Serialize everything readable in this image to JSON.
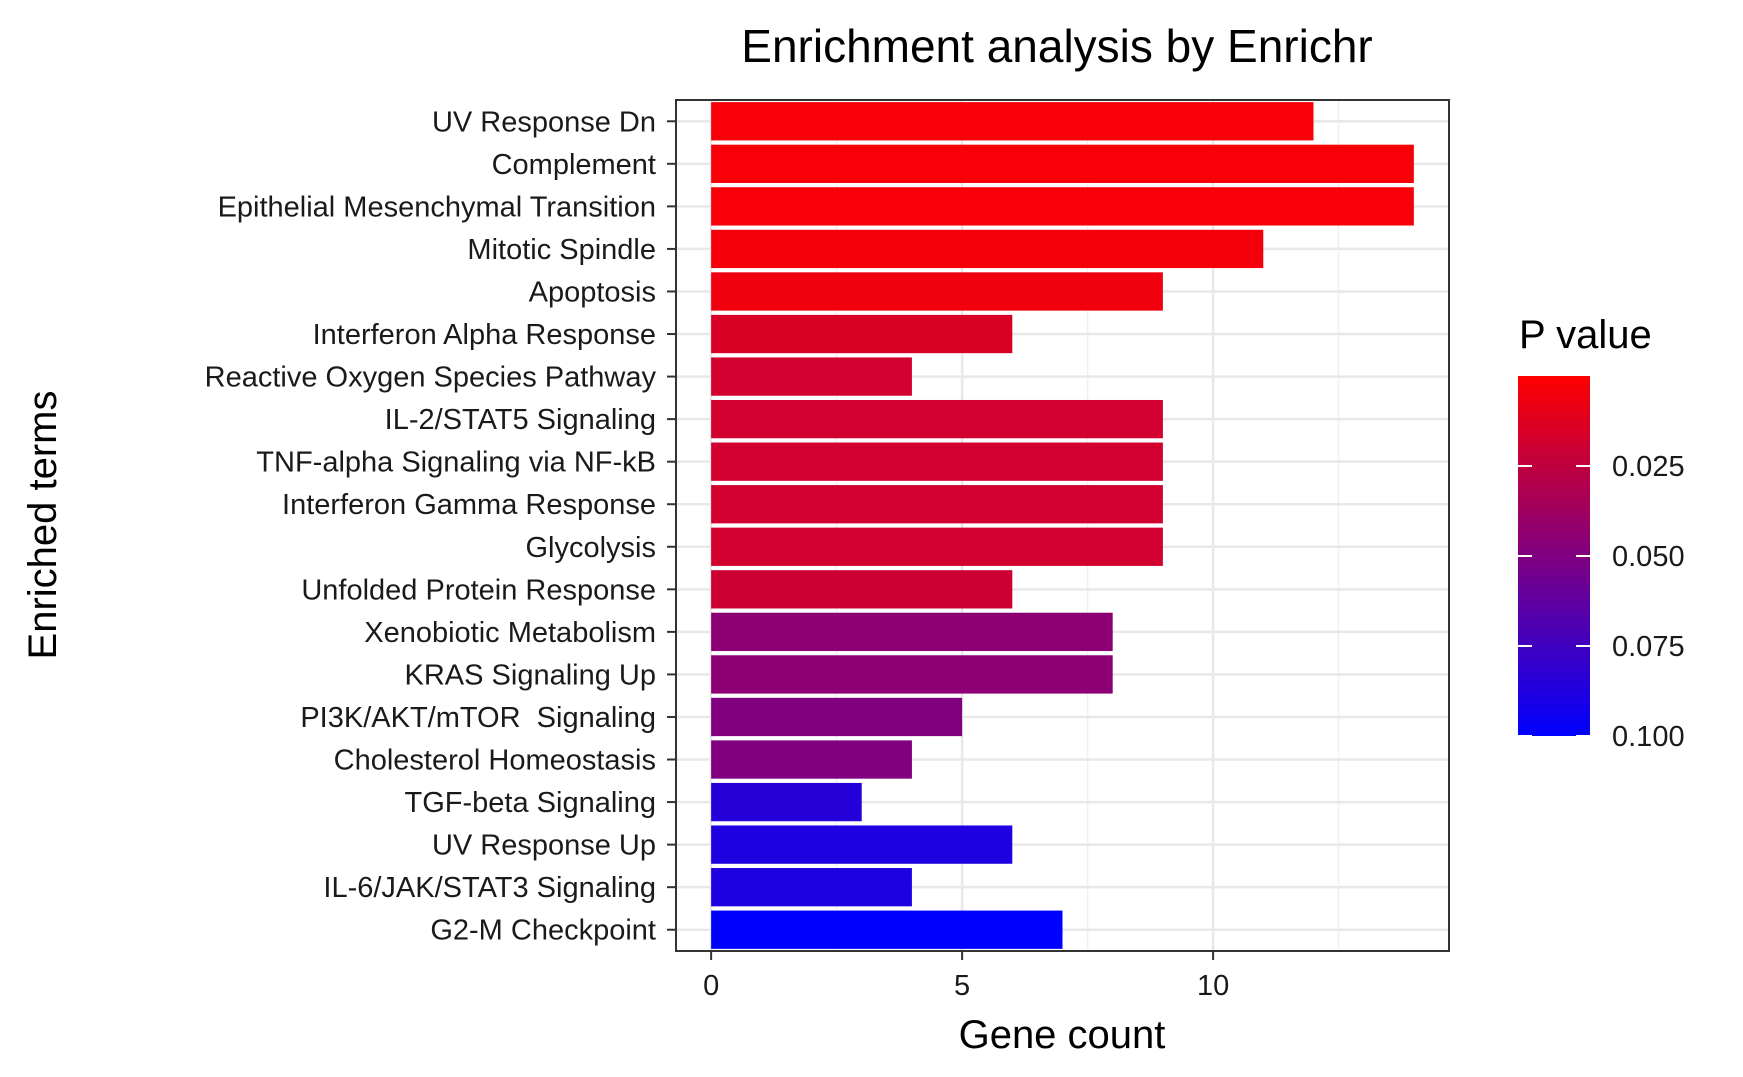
{
  "chart_data": {
    "type": "bar",
    "orientation": "horizontal",
    "title": "Enrichment analysis by Enrichr",
    "xlabel": "Gene count",
    "ylabel": "Enriched terms",
    "xlim": [
      -0.7,
      14.7
    ],
    "xticks": [
      0,
      5,
      10
    ],
    "x_minor_gridlines": [
      2.5,
      7.5,
      12.5
    ],
    "grid": true,
    "categories": [
      "UV Response Dn",
      "Complement",
      "Epithelial Mesenchymal Transition",
      "Mitotic Spindle",
      "Apoptosis",
      "Interferon Alpha Response",
      "Reactive Oxygen Species Pathway",
      "IL-2/STAT5 Signaling",
      "TNF-alpha Signaling via NF-kB",
      "Interferon Gamma Response",
      "Glycolysis",
      "Unfolded Protein Response",
      "Xenobiotic Metabolism",
      "KRAS Signaling Up",
      "PI3K/AKT/mTOR  Signaling",
      "Cholesterol Homeostasis",
      "TGF-beta Signaling",
      "UV Response Up",
      "IL-6/JAK/STAT3 Signaling",
      "G2-M Checkpoint"
    ],
    "values": [
      12,
      14,
      14,
      11,
      9,
      6,
      4,
      9,
      9,
      9,
      9,
      6,
      8,
      8,
      5,
      4,
      3,
      6,
      4,
      7
    ],
    "p_values": [
      0.003,
      0.003,
      0.003,
      0.004,
      0.006,
      0.015,
      0.018,
      0.018,
      0.018,
      0.018,
      0.018,
      0.02,
      0.045,
      0.045,
      0.05,
      0.05,
      0.085,
      0.088,
      0.088,
      0.1
    ],
    "legend": {
      "title": "P value",
      "position": "right",
      "ticks": [
        0.025,
        0.05,
        0.075,
        0.1
      ],
      "tick_labels": [
        "0.025",
        "0.050",
        "0.075",
        "0.100"
      ],
      "range": [
        0.0,
        0.1
      ],
      "color_low_p": "#ff0000",
      "color_high_p": "#0000ff"
    }
  }
}
